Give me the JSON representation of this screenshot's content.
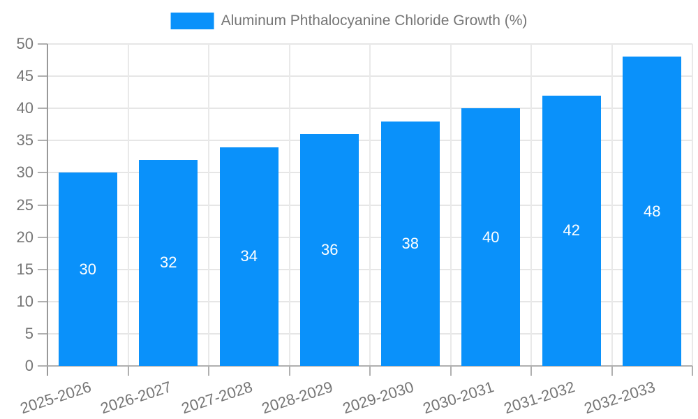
{
  "chart_data": {
    "type": "bar",
    "title": "",
    "legend": "Aluminum Phthalocyanine Chloride Growth (%)",
    "legend_position": "top",
    "categories": [
      "2025-2026",
      "2026-2027",
      "2027-2028",
      "2028-2029",
      "2029-2030",
      "2030-2031",
      "2031-2032",
      "2032-2033"
    ],
    "values": [
      30,
      32,
      34,
      36,
      38,
      40,
      42,
      48
    ],
    "bar_value_labels": [
      "30",
      "32",
      "34",
      "36",
      "38",
      "40",
      "42",
      "48"
    ],
    "yticks": [
      "0",
      "5",
      "10",
      "15",
      "20",
      "25",
      "30",
      "35",
      "40",
      "45",
      "50"
    ],
    "ytick_values": [
      0,
      5,
      10,
      15,
      20,
      25,
      30,
      35,
      40,
      45,
      50
    ],
    "ylim": [
      0,
      50
    ],
    "xlabel": "",
    "ylabel": "",
    "grid": true,
    "colors": {
      "bar": "#0a91fa",
      "bar_value_text": "#ffffff",
      "axis_text": "#757575",
      "legend_text": "#757575",
      "grid_line": "#e6e6e6",
      "axis_line": "#999999",
      "background": "#ffffff"
    }
  }
}
